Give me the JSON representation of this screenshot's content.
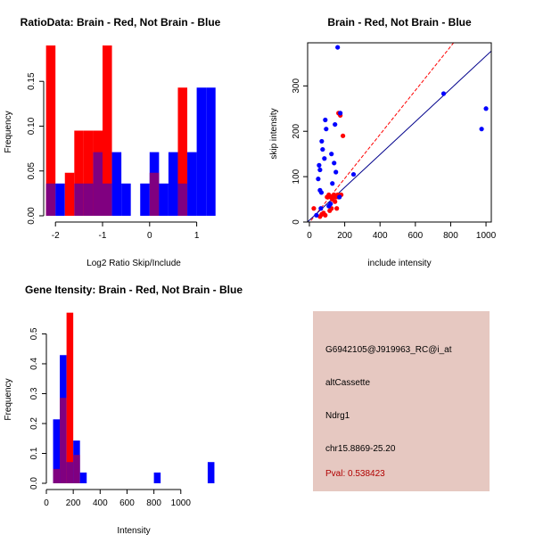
{
  "chart_data": [
    {
      "type": "bar",
      "title": "RatioData: Brain - Red, Not Brain - Blue",
      "xlabel": "Log2 Ratio Skip/Include",
      "ylabel": "Frequency",
      "xlim": [
        -2.25,
        1.5
      ],
      "ylim": [
        0,
        0.19
      ],
      "bin_width": 0.2,
      "xticks": [
        -2,
        -1,
        0,
        1
      ],
      "yticks": [
        0.0,
        0.05,
        0.1,
        0.15
      ],
      "ytick_labels": [
        "0.00",
        "0.05",
        "0.10",
        "0.15"
      ],
      "series": [
        {
          "name": "Brain",
          "color": "#ff0000",
          "bins": [
            [
              -2.2,
              0.19
            ],
            [
              -2.0,
              0.0
            ],
            [
              -1.8,
              0.048
            ],
            [
              -1.6,
              0.095
            ],
            [
              -1.4,
              0.095
            ],
            [
              -1.2,
              0.095
            ],
            [
              -1.0,
              0.19
            ],
            [
              -0.8,
              0.0
            ],
            [
              -0.6,
              0.0
            ],
            [
              -0.4,
              0.0
            ],
            [
              -0.2,
              0.0
            ],
            [
              0.0,
              0.048
            ],
            [
              0.2,
              0.0
            ],
            [
              0.4,
              0.0
            ],
            [
              0.6,
              0.143
            ],
            [
              0.8,
              0.0
            ],
            [
              1.0,
              0.0
            ],
            [
              1.2,
              0.0
            ]
          ]
        },
        {
          "name": "Not Brain",
          "color": "#0000ff",
          "bins": [
            [
              -2.2,
              0.036
            ],
            [
              -2.0,
              0.036
            ],
            [
              -1.8,
              0.0
            ],
            [
              -1.6,
              0.036
            ],
            [
              -1.4,
              0.036
            ],
            [
              -1.2,
              0.071
            ],
            [
              -1.0,
              0.036
            ],
            [
              -0.8,
              0.071
            ],
            [
              -0.6,
              0.036
            ],
            [
              -0.4,
              0.0
            ],
            [
              -0.2,
              0.036
            ],
            [
              0.0,
              0.071
            ],
            [
              0.2,
              0.036
            ],
            [
              0.4,
              0.071
            ],
            [
              0.6,
              0.036
            ],
            [
              0.8,
              0.071
            ],
            [
              1.0,
              0.143
            ],
            [
              1.2,
              0.143
            ]
          ]
        }
      ]
    },
    {
      "type": "scatter",
      "title": "Brain - Red, Not Brain - Blue",
      "xlabel": "include intensity",
      "ylabel": "skip intensity",
      "xlim": [
        -10,
        1030
      ],
      "ylim": [
        0,
        395
      ],
      "xticks": [
        0,
        200,
        400,
        600,
        800,
        1000
      ],
      "yticks": [
        0,
        100,
        200,
        300
      ],
      "lines": [
        {
          "name": "Brain fit",
          "color": "#ff0000",
          "dashed": true,
          "slope": 0.485,
          "intercept": -1
        },
        {
          "name": "Not Brain fit",
          "color": "#00008b",
          "dashed": false,
          "slope": 0.362,
          "intercept": 4
        }
      ],
      "series": [
        {
          "name": "Brain",
          "color": "#ff0000",
          "points": [
            [
              25,
              30
            ],
            [
              60,
              12
            ],
            [
              70,
              17
            ],
            [
              80,
              20
            ],
            [
              90,
              15
            ],
            [
              100,
              55
            ],
            [
              110,
              60
            ],
            [
              115,
              25
            ],
            [
              120,
              55
            ],
            [
              125,
              30
            ],
            [
              130,
              50
            ],
            [
              135,
              58
            ],
            [
              140,
              60
            ],
            [
              145,
              45
            ],
            [
              150,
              55
            ],
            [
              155,
              30
            ],
            [
              160,
              60
            ],
            [
              165,
              55
            ],
            [
              165,
              240
            ],
            [
              175,
              235
            ],
            [
              180,
              60
            ],
            [
              190,
              190
            ]
          ]
        },
        {
          "name": "Not Brain",
          "color": "#0000ff",
          "points": [
            [
              40,
              15
            ],
            [
              50,
              95
            ],
            [
              55,
              125
            ],
            [
              60,
              115
            ],
            [
              60,
              70
            ],
            [
              65,
              30
            ],
            [
              68,
              65
            ],
            [
              70,
              178
            ],
            [
              75,
              160
            ],
            [
              85,
              140
            ],
            [
              90,
              225
            ],
            [
              95,
              205
            ],
            [
              110,
              35
            ],
            [
              120,
              40
            ],
            [
              125,
              150
            ],
            [
              130,
              85
            ],
            [
              140,
              130
            ],
            [
              145,
              215
            ],
            [
              150,
              110
            ],
            [
              160,
              385
            ],
            [
              170,
              55
            ],
            [
              175,
              240
            ],
            [
              250,
              105
            ],
            [
              760,
              283
            ],
            [
              975,
              205
            ],
            [
              1000,
              250
            ]
          ]
        }
      ]
    },
    {
      "type": "bar",
      "title": "Gene Itensity: Brain - Red, Not Brain - Blue",
      "xlabel": "Intensity",
      "ylabel": "Frequency",
      "xlim": [
        0,
        1300
      ],
      "ylim": [
        0,
        0.57
      ],
      "bin_width": 50,
      "xticks": [
        0,
        200,
        400,
        600,
        800,
        1000
      ],
      "yticks": [
        0.0,
        0.1,
        0.2,
        0.3,
        0.4,
        0.5
      ],
      "ytick_labels": [
        "0.0",
        "0.1",
        "0.2",
        "0.3",
        "0.4",
        "0.5"
      ],
      "series": [
        {
          "name": "Brain",
          "color": "#ff0000",
          "bins": [
            [
              50,
              0.048
            ],
            [
              100,
              0.286
            ],
            [
              150,
              0.571
            ],
            [
              200,
              0.095
            ]
          ]
        },
        {
          "name": "Not Brain",
          "color": "#0000ff",
          "bins": [
            [
              50,
              0.214
            ],
            [
              100,
              0.429
            ],
            [
              150,
              0.071
            ],
            [
              200,
              0.143
            ],
            [
              250,
              0.036
            ],
            [
              800,
              0.036
            ],
            [
              1200,
              0.071
            ]
          ]
        }
      ]
    }
  ],
  "info_panel": {
    "probe": "G6942105@J919963_RC@i_at",
    "event_type": "altCassette",
    "gene": "Ndrg1",
    "location": "chr15.8869-25.20",
    "pval": "Pval: 0.538423",
    "background": "#e6c8c1",
    "pval_color": "#b00000"
  }
}
